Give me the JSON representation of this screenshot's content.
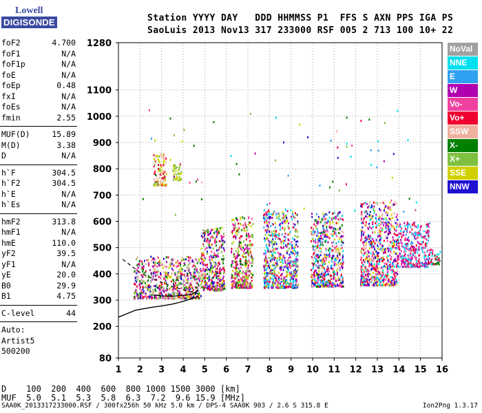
{
  "logo": {
    "line1": "Lowell",
    "line2": "DIGISONDE"
  },
  "header": {
    "line1": "Station YYYY DAY   DDD HHMMSS P1  FFS S AXN PPS IGA PS",
    "line2": "SaoLuis 2013 Nov13 317 233000 RSF 005 2 713 100 10+ 22"
  },
  "params": [
    {
      "label": "foF2",
      "value": "4.700"
    },
    {
      "label": "foF1",
      "value": "N/A"
    },
    {
      "label": "foF1p",
      "value": "N/A"
    },
    {
      "label": "foE",
      "value": "N/A"
    },
    {
      "label": "foEp",
      "value": "0.48"
    },
    {
      "label": "fxI",
      "value": "N/A"
    },
    {
      "label": "foEs",
      "value": "N/A"
    },
    {
      "label": "fmin",
      "value": "2.55"
    },
    {
      "sep": true
    },
    {
      "label": "MUF(D)",
      "value": "15.89"
    },
    {
      "label": "M(D)",
      "value": "3.38"
    },
    {
      "label": "D",
      "value": "N/A"
    },
    {
      "sep": true
    },
    {
      "label": "h`F",
      "value": "304.5"
    },
    {
      "label": "h`F2",
      "value": "304.5"
    },
    {
      "label": "h`E",
      "value": "N/A"
    },
    {
      "label": "h`Es",
      "value": "N/A"
    },
    {
      "sep": true
    },
    {
      "label": "hmF2",
      "value": "313.8"
    },
    {
      "label": "hmF1",
      "value": "N/A"
    },
    {
      "label": "hmE",
      "value": "110.0"
    },
    {
      "label": "yF2",
      "value": "39.5"
    },
    {
      "label": "yF1",
      "value": "N/A"
    },
    {
      "label": "yE",
      "value": "20.0"
    },
    {
      "label": "B0",
      "value": "29.9"
    },
    {
      "label": "B1",
      "value": "4.75"
    },
    {
      "sep": true
    },
    {
      "label": "C-level",
      "value": "44"
    },
    {
      "sep": true
    },
    {
      "text": "Auto:"
    },
    {
      "text": "Artist5"
    },
    {
      "text": "500200"
    }
  ],
  "legend": [
    {
      "label": "NoVal",
      "color": "#a0a0a0"
    },
    {
      "label": "NNE",
      "color": "#00e0f0"
    },
    {
      "label": "E",
      "color": "#30a0f0"
    },
    {
      "label": "W",
      "color": "#b000b0"
    },
    {
      "label": "Vo-",
      "color": "#f040a0"
    },
    {
      "label": "Vo+",
      "color": "#f00030"
    },
    {
      "label": "SSW",
      "color": "#f0b0a0"
    },
    {
      "label": "X-",
      "color": "#008000"
    },
    {
      "label": "X+",
      "color": "#80c040"
    },
    {
      "label": "SSE",
      "color": "#d0d000"
    },
    {
      "label": "NNW",
      "color": "#2010d0"
    }
  ],
  "footer": {
    "d_row": "D    100  200  400  600  800 1000 1500 3000 [km]",
    "muf_row": "MUF  5.0  5.1  5.3  5.8  6.3  7.2  9.6 15.9 [MHz]",
    "file_line": "SAA0K_2013317233000.RSF / 300fx256h 50 kHz 5.0 km / DPS-4 SAA0K 903 / 2.6 S 315.8 E",
    "version": "Ion2Png 1.3.17"
  },
  "chart_data": {
    "type": "scatter",
    "xlabel": "",
    "ylabel": "",
    "xlim": [
      1,
      16
    ],
    "ylim": [
      80,
      1280
    ],
    "x_ticks": [
      1,
      2,
      3,
      4,
      5,
      6,
      7,
      8,
      9,
      10,
      11,
      12,
      13,
      14,
      15,
      16
    ],
    "y_ticks": [
      80,
      200,
      300,
      400,
      500,
      600,
      700,
      800,
      900,
      1000,
      1100,
      1280
    ],
    "grid": true,
    "echo_clusters": [
      {
        "x": [
          1.7,
          4.8
        ],
        "y": [
          310,
          470
        ],
        "colors": [
          "#b000b0",
          "#f040a0",
          "#f00030",
          "#008000",
          "#80c040",
          "#d0d000",
          "#f0b0a0",
          "#2010d0",
          "#a0a0a0"
        ]
      },
      {
        "x": [
          2.6,
          3.2
        ],
        "y": [
          740,
          860
        ],
        "colors": [
          "#d0d000",
          "#80c040",
          "#f0b0a0",
          "#f00030"
        ]
      },
      {
        "x": [
          3.5,
          3.9
        ],
        "y": [
          760,
          820
        ],
        "colors": [
          "#d0d000",
          "#80c040"
        ]
      },
      {
        "x": [
          4.8,
          5.9
        ],
        "y": [
          340,
          580
        ],
        "colors": [
          "#b000b0",
          "#d0d000",
          "#f040a0",
          "#008000",
          "#80c040",
          "#2010d0",
          "#f00030"
        ]
      },
      {
        "x": [
          6.2,
          7.2
        ],
        "y": [
          350,
          620
        ],
        "colors": [
          "#d0d000",
          "#f040a0",
          "#b000b0",
          "#f00030",
          "#80c040",
          "#008000"
        ]
      },
      {
        "x": [
          7.7,
          9.3
        ],
        "y": [
          350,
          650
        ],
        "colors": [
          "#00e0f0",
          "#30a0f0",
          "#b000b0",
          "#f040a0",
          "#f00030",
          "#2010d0",
          "#d0d000",
          "#80c040"
        ]
      },
      {
        "x": [
          9.9,
          11.4
        ],
        "y": [
          355,
          640
        ],
        "colors": [
          "#00e0f0",
          "#30a0f0",
          "#b000b0",
          "#f040a0",
          "#f00030",
          "#2010d0",
          "#d0d000",
          "#f0b0a0",
          "#008000"
        ]
      },
      {
        "x": [
          12.2,
          13.9
        ],
        "y": [
          360,
          680
        ],
        "colors": [
          "#f040a0",
          "#f00030",
          "#b000b0",
          "#d0d000",
          "#f0b0a0",
          "#2010d0",
          "#00e0f0"
        ]
      },
      {
        "x": [
          13.9,
          15.4
        ],
        "y": [
          430,
          600
        ],
        "colors": [
          "#f00030",
          "#f040a0",
          "#b000b0",
          "#00e0f0",
          "#30a0f0"
        ]
      },
      {
        "x": [
          15.3,
          15.9
        ],
        "y": [
          440,
          500
        ],
        "colors": [
          "#00e0f0",
          "#008000",
          "#f00030",
          "#f040a0"
        ]
      }
    ],
    "profile_curve": {
      "x": [
        1.0,
        1.8,
        2.5,
        3.0,
        3.5,
        3.8,
        4.1,
        4.4,
        4.6,
        4.7
      ],
      "y": [
        235,
        262,
        272,
        278,
        285,
        291,
        298,
        306,
        312,
        314
      ]
    },
    "ordinary_trace": {
      "x": [
        2.6,
        3.0,
        3.5,
        4.0,
        4.4,
        4.6,
        4.7
      ],
      "y": [
        320,
        316,
        315,
        318,
        322,
        332,
        340
      ]
    },
    "dashed_trace": {
      "x": [
        1.2,
        1.6,
        2.0,
        2.5,
        3.0,
        3.5,
        4.0,
        4.5,
        4.8
      ],
      "y": [
        455,
        430,
        405,
        385,
        368,
        352,
        340,
        330,
        320
      ]
    }
  }
}
